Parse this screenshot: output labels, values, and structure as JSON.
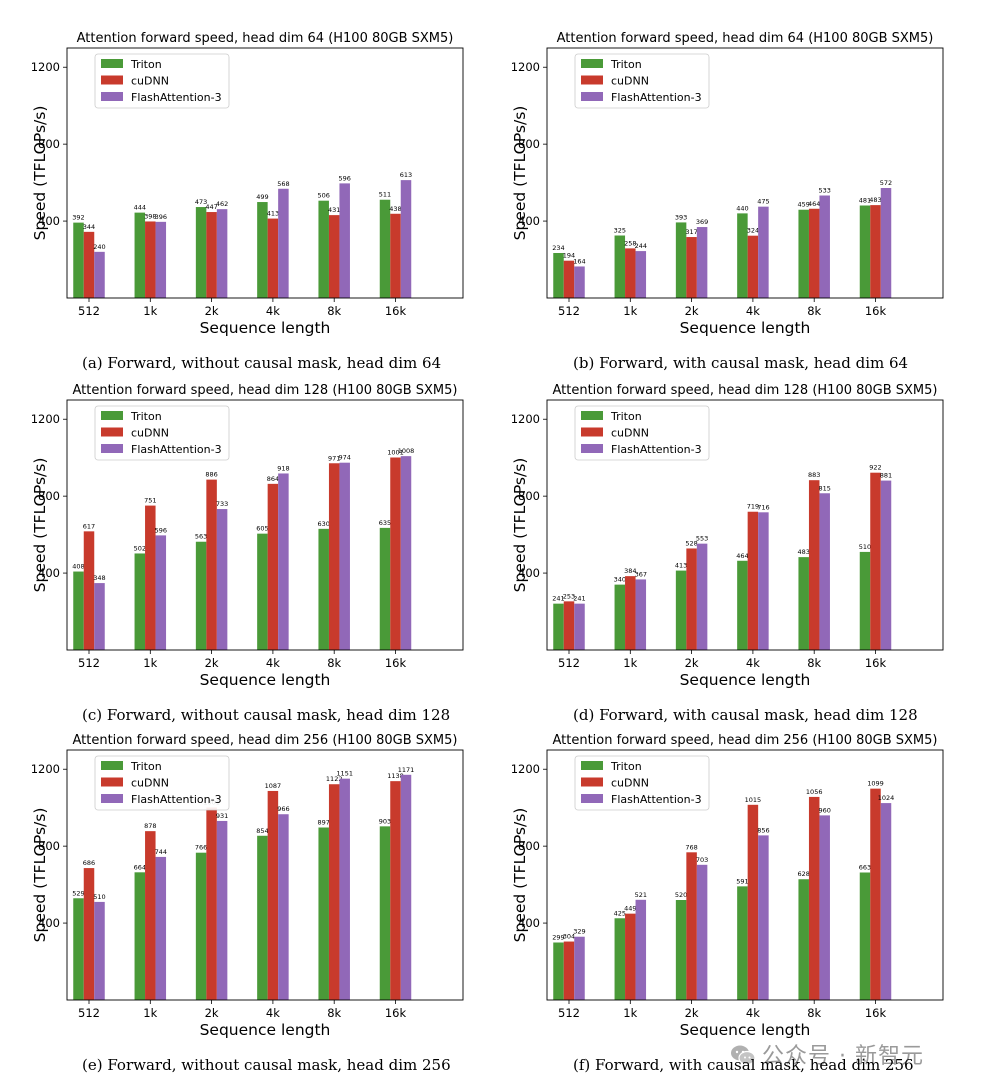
{
  "chart_data": [
    {
      "type": "bar",
      "title": "Attention forward speed, head dim 64 (H100 80GB SXM5)",
      "xlabel": "Sequence length",
      "ylabel": "Speed (TFLOPs/s)",
      "ylim": [
        0,
        1300
      ],
      "yticks": [
        400,
        800,
        1200
      ],
      "legend": "top-left",
      "grid": false,
      "categories": [
        "512",
        "1k",
        "2k",
        "4k",
        "8k",
        "16k"
      ],
      "series": [
        {
          "name": "Triton",
          "color": "#4a9a38",
          "values": [
            392,
            444,
            473,
            499,
            506,
            511
          ]
        },
        {
          "name": "cuDNN",
          "color": "#c83a2c",
          "values": [
            344,
            398,
            447,
            413,
            431,
            438
          ]
        },
        {
          "name": "FlashAttention-3",
          "color": "#9168b8",
          "values": [
            240,
            396,
            462,
            568,
            596,
            613
          ]
        }
      ],
      "caption": "(a) Forward, without causal mask, head dim 64"
    },
    {
      "type": "bar",
      "title": "Attention forward speed, head dim 64 (H100 80GB SXM5)",
      "xlabel": "Sequence length",
      "ylabel": "Speed (TFLOPs/s)",
      "ylim": [
        0,
        1300
      ],
      "yticks": [
        400,
        800,
        1200
      ],
      "legend": "top-left",
      "grid": false,
      "categories": [
        "512",
        "1k",
        "2k",
        "4k",
        "8k",
        "16k"
      ],
      "series": [
        {
          "name": "Triton",
          "color": "#4a9a38",
          "values": [
            234,
            325,
            393,
            440,
            459,
            481
          ]
        },
        {
          "name": "cuDNN",
          "color": "#c83a2c",
          "values": [
            194,
            258,
            317,
            324,
            464,
            483
          ]
        },
        {
          "name": "FlashAttention-3",
          "color": "#9168b8",
          "values": [
            164,
            244,
            369,
            475,
            533,
            572
          ]
        }
      ],
      "caption": "(b) Forward, with causal mask, head dim 64"
    },
    {
      "type": "bar",
      "title": "Attention forward speed, head dim 128 (H100 80GB SXM5)",
      "xlabel": "Sequence length",
      "ylabel": "Speed (TFLOPs/s)",
      "ylim": [
        0,
        1300
      ],
      "yticks": [
        400,
        800,
        1200
      ],
      "legend": "top-left",
      "grid": false,
      "categories": [
        "512",
        "1k",
        "2k",
        "4k",
        "8k",
        "16k"
      ],
      "series": [
        {
          "name": "Triton",
          "color": "#4a9a38",
          "values": [
            408,
            502,
            563,
            605,
            630,
            635
          ]
        },
        {
          "name": "cuDNN",
          "color": "#c83a2c",
          "values": [
            617,
            751,
            886,
            864,
            971,
            1001
          ]
        },
        {
          "name": "FlashAttention-3",
          "color": "#9168b8",
          "values": [
            348,
            596,
            733,
            918,
            974,
            1008
          ]
        }
      ],
      "caption": "(c) Forward, without causal mask, head dim 128"
    },
    {
      "type": "bar",
      "title": "Attention forward speed, head dim 128 (H100 80GB SXM5)",
      "xlabel": "Sequence length",
      "ylabel": "Speed (TFLOPs/s)",
      "ylim": [
        0,
        1300
      ],
      "yticks": [
        400,
        800,
        1200
      ],
      "legend": "top-left",
      "grid": false,
      "categories": [
        "512",
        "1k",
        "2k",
        "4k",
        "8k",
        "16k"
      ],
      "series": [
        {
          "name": "Triton",
          "color": "#4a9a38",
          "values": [
            241,
            340,
            413,
            464,
            483,
            510
          ]
        },
        {
          "name": "cuDNN",
          "color": "#c83a2c",
          "values": [
            253,
            384,
            528,
            719,
            883,
            922
          ]
        },
        {
          "name": "FlashAttention-3",
          "color": "#9168b8",
          "values": [
            241,
            367,
            553,
            716,
            815,
            881
          ]
        }
      ],
      "caption": "(d) Forward, with causal mask, head dim 128"
    },
    {
      "type": "bar",
      "title": "Attention forward speed, head dim 256 (H100 80GB SXM5)",
      "xlabel": "Sequence length",
      "ylabel": "Speed (TFLOPs/s)",
      "ylim": [
        0,
        1300
      ],
      "yticks": [
        400,
        800,
        1200
      ],
      "legend": "top-left",
      "grid": false,
      "categories": [
        "512",
        "1k",
        "2k",
        "4k",
        "8k",
        "16k"
      ],
      "series": [
        {
          "name": "Triton",
          "color": "#4a9a38",
          "values": [
            529,
            664,
            766,
            854,
            897,
            903
          ]
        },
        {
          "name": "cuDNN",
          "color": "#c83a2c",
          "values": [
            686,
            878,
            1001,
            1087,
            1122,
            1138
          ]
        },
        {
          "name": "FlashAttention-3",
          "color": "#9168b8",
          "values": [
            510,
            744,
            931,
            966,
            1151,
            1171
          ]
        }
      ],
      "caption": "(e) Forward, without causal mask, head dim 256"
    },
    {
      "type": "bar",
      "title": "Attention forward speed, head dim 256 (H100 80GB SXM5)",
      "xlabel": "Sequence length",
      "ylabel": "Speed (TFLOPs/s)",
      "ylim": [
        0,
        1300
      ],
      "yticks": [
        400,
        800,
        1200
      ],
      "legend": "top-left",
      "grid": false,
      "categories": [
        "512",
        "1k",
        "2k",
        "4k",
        "8k",
        "16k"
      ],
      "series": [
        {
          "name": "Triton",
          "color": "#4a9a38",
          "values": [
            299,
            425,
            520,
            591,
            628,
            663
          ]
        },
        {
          "name": "cuDNN",
          "color": "#c83a2c",
          "values": [
            304,
            449,
            768,
            1015,
            1056,
            1099
          ]
        },
        {
          "name": "FlashAttention-3",
          "color": "#9168b8",
          "values": [
            329,
            521,
            703,
            856,
            960,
            1024
          ]
        }
      ],
      "caption": "(f) Forward, with causal mask, head dim 256"
    }
  ],
  "watermark": {
    "text": "公众号 · 新智元",
    "icon": "wechat-icon"
  }
}
